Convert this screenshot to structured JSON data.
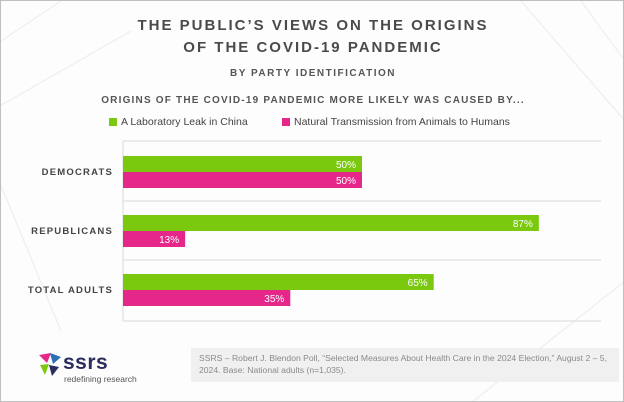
{
  "header": {
    "title_line1": "THE PUBLIC’S VIEWS ON THE ORIGINS",
    "title_line2": "OF THE COVID-19 PANDEMIC",
    "subtitle": "BY PARTY IDENTIFICATION",
    "question": "ORIGINS OF THE COVID-19 PANDEMIC MORE LIKELY WAS CAUSED BY..."
  },
  "colors": {
    "lab_leak": "#7ac90f",
    "natural": "#e5278a",
    "label_text": "#444444",
    "gridline": "#d9d9d9",
    "logo_navy": "#2b2d5a"
  },
  "chart_data": {
    "type": "bar",
    "orientation": "horizontal",
    "categories": [
      "DEMOCRATS",
      "REPUBLICANS",
      "TOTAL ADULTS"
    ],
    "series": [
      {
        "name": "A Laboratory Leak in China",
        "values": [
          50,
          87,
          65
        ]
      },
      {
        "name": "Natural Transmission from Animals to Humans",
        "values": [
          50,
          13,
          35
        ]
      }
    ],
    "data_labels": [
      [
        "50%",
        "87%",
        "65%"
      ],
      [
        "50%",
        "13%",
        "35%"
      ]
    ],
    "xlim": [
      0,
      100
    ],
    "legend_position": "top-left",
    "grid": true
  },
  "footer": {
    "source": "SSRS – Robert J. Blendon Poll, “Selected Measures About Health Care in the 2024 Election,” August 2 – 5, 2024. Base: National adults (n=1,035).",
    "logo_text": "ssrs",
    "logo_tagline": "redefining research"
  }
}
